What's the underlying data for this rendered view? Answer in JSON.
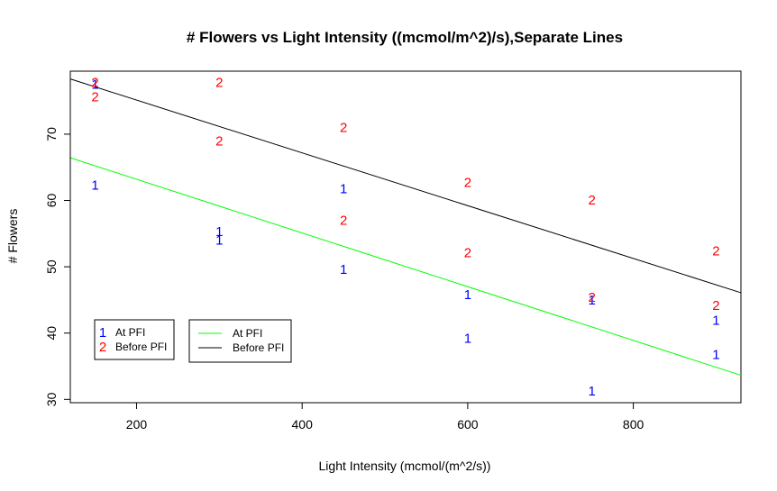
{
  "chart_data": {
    "type": "scatter",
    "title": "# Flowers vs Light Intensity ((mcmol/m^2)/s),Separate Lines",
    "xlabel": "Light Intensity (mcmol/(m^2/s))",
    "ylabel": "# Flowers",
    "xlim": [
      120,
      930
    ],
    "ylim": [
      29.5,
      79.5
    ],
    "xticks": [
      200,
      400,
      600,
      800
    ],
    "yticks": [
      30,
      40,
      50,
      60,
      70
    ],
    "xtick_labels": [
      "200",
      "400",
      "600",
      "800"
    ],
    "ytick_labels": [
      "30",
      "40",
      "50",
      "60",
      "70"
    ],
    "grid": false,
    "series": [
      {
        "name": "At PFI",
        "marker": "1",
        "color": "#0000ff",
        "points": [
          {
            "x": 150,
            "y": 77.5
          },
          {
            "x": 150,
            "y": 62.3
          },
          {
            "x": 300,
            "y": 55.3
          },
          {
            "x": 300,
            "y": 54.0
          },
          {
            "x": 450,
            "y": 61.8
          },
          {
            "x": 450,
            "y": 49.6
          },
          {
            "x": 600,
            "y": 45.8
          },
          {
            "x": 600,
            "y": 39.2
          },
          {
            "x": 750,
            "y": 45.0
          },
          {
            "x": 750,
            "y": 31.3
          },
          {
            "x": 900,
            "y": 41.9
          },
          {
            "x": 900,
            "y": 36.8
          }
        ]
      },
      {
        "name": "Before PFI",
        "marker": "2",
        "color": "#ff0000",
        "points": [
          {
            "x": 150,
            "y": 77.8
          },
          {
            "x": 150,
            "y": 75.6
          },
          {
            "x": 300,
            "y": 77.8
          },
          {
            "x": 300,
            "y": 69.0
          },
          {
            "x": 450,
            "y": 71.0
          },
          {
            "x": 450,
            "y": 57.0
          },
          {
            "x": 600,
            "y": 62.7
          },
          {
            "x": 600,
            "y": 52.1
          },
          {
            "x": 750,
            "y": 60.1
          },
          {
            "x": 750,
            "y": 45.4
          },
          {
            "x": 900,
            "y": 52.4
          },
          {
            "x": 900,
            "y": 44.2
          }
        ]
      }
    ],
    "fit_lines": [
      {
        "name": "At PFI",
        "color": "#00ff00",
        "intercept": 71.3,
        "slope": -0.0405
      },
      {
        "name": "Before PFI",
        "color": "#000000",
        "intercept": 83.1,
        "slope": -0.0398
      }
    ],
    "legends": [
      {
        "placement": "bottom-left",
        "kind": "markers",
        "entries": [
          {
            "marker": "1",
            "label": "At PFI",
            "color": "#0000ff"
          },
          {
            "marker": "2",
            "label": "Before PFI",
            "color": "#ff0000"
          }
        ]
      },
      {
        "placement": "bottom-left",
        "kind": "lines",
        "entries": [
          {
            "label": "At PFI",
            "color": "#00ff00"
          },
          {
            "label": "Before PFI",
            "color": "#000000"
          }
        ]
      }
    ]
  }
}
